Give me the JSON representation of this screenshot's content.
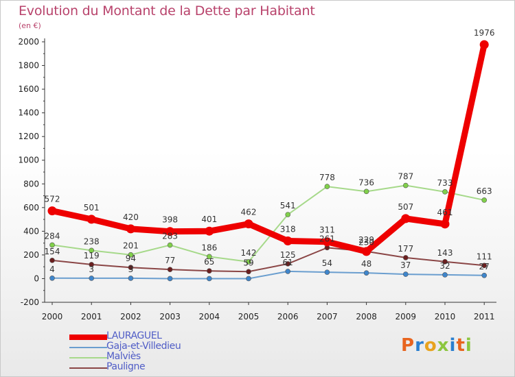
{
  "title": "Evolution du Montant de la Dette par Habitant",
  "subtitle": "(en €)",
  "brand": {
    "text": "Proxiti",
    "letter_colors": [
      "#e8641e",
      "#2a7fd0",
      "#e8a31e",
      "#8cc63f",
      "#2a7fd0",
      "#e8641e",
      "#8cc63f"
    ]
  },
  "chart_data": {
    "type": "line",
    "x": [
      "2000",
      "2001",
      "2002",
      "2003",
      "2004",
      "2005",
      "2006",
      "2007",
      "2008",
      "2009",
      "2010",
      "2011"
    ],
    "ylim": [
      -200,
      2000
    ],
    "yticks": [
      "-200",
      "0",
      "200",
      "400",
      "600",
      "800",
      "1000",
      "1200",
      "1400",
      "1600",
      "1800",
      "2000"
    ],
    "grid": false,
    "legend_position": "bottom-left",
    "series": [
      {
        "name": "LAURAGUEL",
        "color": "#ee0000",
        "thick": true,
        "values": [
          572,
          501,
          420,
          398,
          401,
          462,
          318,
          311,
          229,
          507,
          461,
          1976
        ],
        "labels": [
          "572",
          "501",
          "420",
          "398",
          "401",
          "462",
          "318",
          "311",
          "229",
          "507",
          "461",
          "1976"
        ]
      },
      {
        "name": "Gaja-et-Villedieu",
        "color": "#6a9ecf",
        "marker": "#3f86cc",
        "values": [
          4,
          3,
          3,
          0,
          0,
          0,
          61,
          54,
          48,
          37,
          32,
          27
        ],
        "labels": [
          "4",
          "3",
          "3",
          "",
          "",
          "",
          "61",
          "54",
          "48",
          "37",
          "32",
          "27"
        ]
      },
      {
        "name": "Malviès",
        "color": "#a6d98a",
        "marker": "#80d04a",
        "values": [
          284,
          238,
          201,
          283,
          186,
          142,
          541,
          778,
          736,
          787,
          733,
          663
        ],
        "labels": [
          "284",
          "238",
          "201",
          "283",
          "186",
          "142",
          "541",
          "778",
          "736",
          "787",
          "733",
          "663"
        ]
      },
      {
        "name": "Pauligne",
        "color": "#8a4545",
        "marker": "#6b1f1f",
        "values": [
          154,
          119,
          94,
          77,
          65,
          59,
          125,
          261,
          230,
          177,
          143,
          111
        ],
        "labels": [
          "154",
          "119",
          "94",
          "77",
          "65",
          "59",
          "125",
          "261",
          "230",
          "177",
          "143",
          "111"
        ]
      }
    ]
  }
}
